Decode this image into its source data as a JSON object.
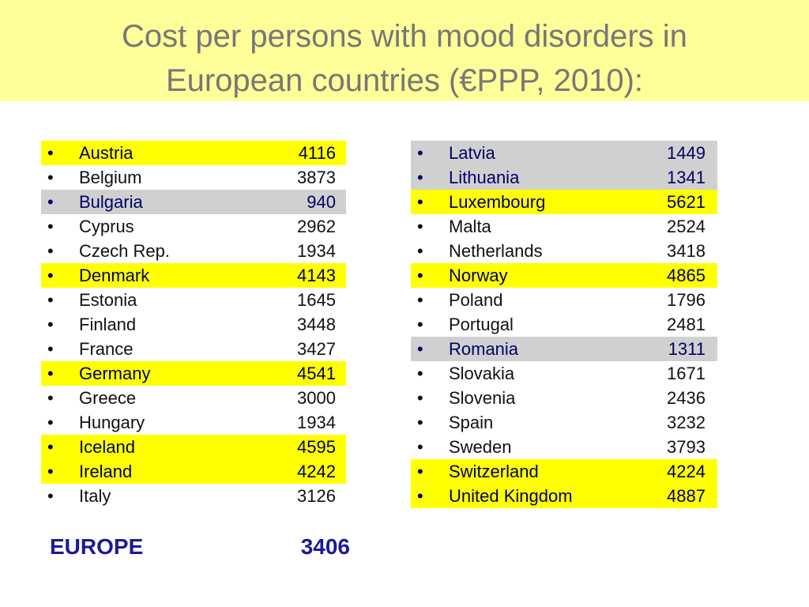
{
  "title": "Cost per persons with mood disorders in European countries (€PPP, 2010):",
  "left": {
    "rows": [
      {
        "country": "Austria",
        "value": 4116,
        "highlight": "#ffff00"
      },
      {
        "country": "Belgium",
        "value": 3873
      },
      {
        "country": "Bulgaria",
        "value": 940,
        "highlight": "#d0d0d0"
      },
      {
        "country": "Cyprus",
        "value": 2962
      },
      {
        "country": "Czech Rep.",
        "value": 1934
      },
      {
        "country": "Denmark",
        "value": 4143,
        "highlight": "#ffff00"
      },
      {
        "country": "Estonia",
        "value": 1645
      },
      {
        "country": "Finland",
        "value": 3448
      },
      {
        "country": "France",
        "value": 3427
      },
      {
        "country": "Germany",
        "value": 4541,
        "highlight": "#ffff00"
      },
      {
        "country": "Greece",
        "value": 3000
      },
      {
        "country": "Hungary",
        "value": 1934
      },
      {
        "country": "Iceland",
        "value": 4595,
        "highlight": "#ffff00"
      },
      {
        "country": "Ireland",
        "value": 4242,
        "highlight": "#ffff00"
      },
      {
        "country": "Italy",
        "value": 3126
      }
    ]
  },
  "right": {
    "rows": [
      {
        "country": "Latvia",
        "value": 1449,
        "highlight": "#d0d0d0"
      },
      {
        "country": "Lithuania",
        "value": 1341,
        "highlight": "#d0d0d0"
      },
      {
        "country": "Luxembourg",
        "value": 5621,
        "highlight": "#ffff00"
      },
      {
        "country": "Malta",
        "value": 2524
      },
      {
        "country": "Netherlands",
        "value": 3418
      },
      {
        "country": "Norway",
        "value": 4865,
        "highlight": "#ffff00"
      },
      {
        "country": "Poland",
        "value": 1796
      },
      {
        "country": "Portugal",
        "value": 2481
      },
      {
        "country": "Romania",
        "value": 1311,
        "highlight": "#d0d0d0"
      },
      {
        "country": "Slovakia",
        "value": 1671
      },
      {
        "country": "Slovenia",
        "value": 2436
      },
      {
        "country": "Spain",
        "value": 3232
      },
      {
        "country": "Sweden",
        "value": 3793
      },
      {
        "country": "Switzerland",
        "value": 4224,
        "highlight": "#ffff00"
      },
      {
        "country": "United Kingdom",
        "value": 4887,
        "highlight": "#ffff00"
      }
    ]
  },
  "total": {
    "label": "EUROPE",
    "value": 3406
  }
}
